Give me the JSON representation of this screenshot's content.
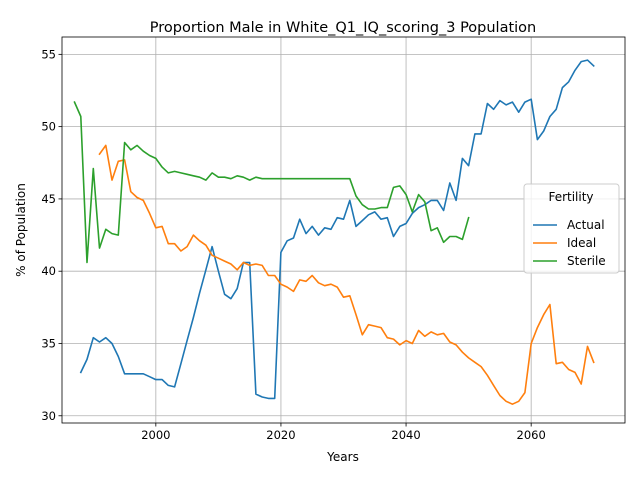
{
  "chart_data": {
    "type": "line",
    "title": "Proportion Male in White_Q1_IQ_scoring_3 Population",
    "xlabel": "Years",
    "ylabel": "% of Population",
    "xlim": [
      1985,
      2075
    ],
    "ylim": [
      29.5,
      56.2
    ],
    "xticks": [
      2000,
      2020,
      2040,
      2060
    ],
    "yticks": [
      30,
      35,
      40,
      45,
      50,
      55
    ],
    "grid": true,
    "legend": {
      "title": "Fertility",
      "placement": "center-right"
    },
    "series": [
      {
        "name": "Actual",
        "color": "#1f77b4",
        "points": [
          [
            1988,
            33.0
          ],
          [
            1989,
            33.9
          ],
          [
            1990,
            35.4
          ],
          [
            1991,
            35.1
          ],
          [
            1992,
            35.4
          ],
          [
            1993,
            35.0
          ],
          [
            1994,
            34.1
          ],
          [
            1995,
            32.9
          ],
          [
            1996,
            32.9
          ],
          [
            1997,
            32.9
          ],
          [
            1998,
            32.9
          ],
          [
            1999,
            32.7
          ],
          [
            2000,
            32.5
          ],
          [
            2001,
            32.5
          ],
          [
            2002,
            32.1
          ],
          [
            2003,
            32.0
          ],
          [
            2004,
            33.6
          ],
          [
            2005,
            35.2
          ],
          [
            2006,
            36.8
          ],
          [
            2007,
            38.5
          ],
          [
            2008,
            40.1
          ],
          [
            2009,
            41.7
          ],
          [
            2010,
            40.0
          ],
          [
            2011,
            38.4
          ],
          [
            2012,
            38.1
          ],
          [
            2013,
            38.8
          ],
          [
            2014,
            40.6
          ],
          [
            2015,
            40.6
          ],
          [
            2016,
            31.5
          ],
          [
            2017,
            31.3
          ],
          [
            2018,
            31.2
          ],
          [
            2019,
            31.2
          ],
          [
            2020,
            41.3
          ],
          [
            2021,
            42.1
          ],
          [
            2022,
            42.3
          ],
          [
            2023,
            43.6
          ],
          [
            2024,
            42.6
          ],
          [
            2025,
            43.1
          ],
          [
            2026,
            42.5
          ],
          [
            2027,
            43.0
          ],
          [
            2028,
            42.9
          ],
          [
            2029,
            43.7
          ],
          [
            2030,
            43.6
          ],
          [
            2031,
            44.9
          ],
          [
            2032,
            43.1
          ],
          [
            2033,
            43.5
          ],
          [
            2034,
            43.9
          ],
          [
            2035,
            44.1
          ],
          [
            2036,
            43.6
          ],
          [
            2037,
            43.7
          ],
          [
            2038,
            42.4
          ],
          [
            2039,
            43.1
          ],
          [
            2040,
            43.3
          ],
          [
            2041,
            44.0
          ],
          [
            2042,
            44.4
          ],
          [
            2043,
            44.6
          ],
          [
            2044,
            44.9
          ],
          [
            2045,
            44.9
          ],
          [
            2046,
            44.2
          ],
          [
            2047,
            46.1
          ],
          [
            2048,
            44.9
          ],
          [
            2049,
            47.8
          ],
          [
            2050,
            47.3
          ],
          [
            2051,
            49.5
          ],
          [
            2052,
            49.5
          ],
          [
            2053,
            51.6
          ],
          [
            2054,
            51.2
          ],
          [
            2055,
            51.8
          ],
          [
            2056,
            51.5
          ],
          [
            2057,
            51.7
          ],
          [
            2058,
            51.0
          ],
          [
            2059,
            51.7
          ],
          [
            2060,
            51.9
          ],
          [
            2061,
            49.1
          ],
          [
            2062,
            49.7
          ],
          [
            2063,
            50.7
          ],
          [
            2064,
            51.2
          ],
          [
            2065,
            52.7
          ],
          [
            2066,
            53.1
          ],
          [
            2067,
            53.9
          ],
          [
            2068,
            54.5
          ],
          [
            2069,
            54.6
          ],
          [
            2070,
            54.2
          ]
        ]
      },
      {
        "name": "Ideal",
        "color": "#ff7f0e",
        "points": [
          [
            1991,
            48.1
          ],
          [
            1992,
            48.7
          ],
          [
            1993,
            46.3
          ],
          [
            1994,
            47.6
          ],
          [
            1995,
            47.7
          ],
          [
            1996,
            45.5
          ],
          [
            1997,
            45.1
          ],
          [
            1998,
            44.9
          ],
          [
            1999,
            44.0
          ],
          [
            2000,
            43.0
          ],
          [
            2001,
            43.1
          ],
          [
            2002,
            41.9
          ],
          [
            2003,
            41.9
          ],
          [
            2004,
            41.4
          ],
          [
            2005,
            41.7
          ],
          [
            2006,
            42.5
          ],
          [
            2007,
            42.1
          ],
          [
            2008,
            41.8
          ],
          [
            2009,
            41.1
          ],
          [
            2010,
            40.9
          ],
          [
            2011,
            40.7
          ],
          [
            2012,
            40.5
          ],
          [
            2013,
            40.1
          ],
          [
            2014,
            40.6
          ],
          [
            2015,
            40.4
          ],
          [
            2016,
            40.5
          ],
          [
            2017,
            40.4
          ],
          [
            2018,
            39.7
          ],
          [
            2019,
            39.7
          ],
          [
            2020,
            39.1
          ],
          [
            2021,
            38.9
          ],
          [
            2022,
            38.6
          ],
          [
            2023,
            39.4
          ],
          [
            2024,
            39.3
          ],
          [
            2025,
            39.7
          ],
          [
            2026,
            39.2
          ],
          [
            2027,
            39.0
          ],
          [
            2028,
            39.1
          ],
          [
            2029,
            38.9
          ],
          [
            2030,
            38.2
          ],
          [
            2031,
            38.3
          ],
          [
            2032,
            37.0
          ],
          [
            2033,
            35.6
          ],
          [
            2034,
            36.3
          ],
          [
            2035,
            36.2
          ],
          [
            2036,
            36.1
          ],
          [
            2037,
            35.4
          ],
          [
            2038,
            35.3
          ],
          [
            2039,
            34.9
          ],
          [
            2040,
            35.2
          ],
          [
            2041,
            35.0
          ],
          [
            2042,
            35.9
          ],
          [
            2043,
            35.5
          ],
          [
            2044,
            35.8
          ],
          [
            2045,
            35.6
          ],
          [
            2046,
            35.7
          ],
          [
            2047,
            35.1
          ],
          [
            2048,
            34.9
          ],
          [
            2049,
            34.4
          ],
          [
            2050,
            34.0
          ],
          [
            2051,
            33.7
          ],
          [
            2052,
            33.4
          ],
          [
            2053,
            32.8
          ],
          [
            2054,
            32.1
          ],
          [
            2055,
            31.4
          ],
          [
            2056,
            31.0
          ],
          [
            2057,
            30.8
          ],
          [
            2058,
            31.0
          ],
          [
            2059,
            31.6
          ],
          [
            2060,
            35.0
          ],
          [
            2061,
            36.1
          ],
          [
            2062,
            37.0
          ],
          [
            2063,
            37.7
          ],
          [
            2064,
            33.6
          ],
          [
            2065,
            33.7
          ],
          [
            2066,
            33.2
          ],
          [
            2067,
            33.0
          ],
          [
            2068,
            32.2
          ],
          [
            2069,
            34.8
          ],
          [
            2070,
            33.7
          ]
        ]
      },
      {
        "name": "Sterile",
        "color": "#2ca02c",
        "points": [
          [
            1987,
            51.7
          ],
          [
            1988,
            50.7
          ],
          [
            1989,
            40.6
          ],
          [
            1990,
            47.1
          ],
          [
            1991,
            41.6
          ],
          [
            1992,
            42.9
          ],
          [
            1993,
            42.6
          ],
          [
            1994,
            42.5
          ],
          [
            1995,
            48.9
          ],
          [
            1996,
            48.4
          ],
          [
            1997,
            48.7
          ],
          [
            1998,
            48.3
          ],
          [
            1999,
            48.0
          ],
          [
            2000,
            47.8
          ],
          [
            2001,
            47.2
          ],
          [
            2002,
            46.8
          ],
          [
            2003,
            46.9
          ],
          [
            2004,
            46.8
          ],
          [
            2005,
            46.7
          ],
          [
            2006,
            46.6
          ],
          [
            2007,
            46.5
          ],
          [
            2008,
            46.3
          ],
          [
            2009,
            46.8
          ],
          [
            2010,
            46.5
          ],
          [
            2011,
            46.5
          ],
          [
            2012,
            46.4
          ],
          [
            2013,
            46.6
          ],
          [
            2014,
            46.5
          ],
          [
            2015,
            46.3
          ],
          [
            2016,
            46.5
          ],
          [
            2017,
            46.4
          ],
          [
            2018,
            46.4
          ],
          [
            2019,
            46.4
          ],
          [
            2020,
            46.4
          ],
          [
            2021,
            46.4
          ],
          [
            2022,
            46.4
          ],
          [
            2023,
            46.4
          ],
          [
            2024,
            46.4
          ],
          [
            2025,
            46.4
          ],
          [
            2026,
            46.4
          ],
          [
            2027,
            46.4
          ],
          [
            2028,
            46.4
          ],
          [
            2029,
            46.4
          ],
          [
            2030,
            46.4
          ],
          [
            2031,
            46.4
          ],
          [
            2032,
            45.2
          ],
          [
            2033,
            44.6
          ],
          [
            2034,
            44.3
          ],
          [
            2035,
            44.3
          ],
          [
            2036,
            44.4
          ],
          [
            2037,
            44.4
          ],
          [
            2038,
            45.8
          ],
          [
            2039,
            45.9
          ],
          [
            2040,
            45.3
          ],
          [
            2041,
            44.1
          ],
          [
            2042,
            45.3
          ],
          [
            2043,
            44.8
          ],
          [
            2044,
            42.8
          ],
          [
            2045,
            43.0
          ],
          [
            2046,
            42.0
          ],
          [
            2047,
            42.4
          ],
          [
            2048,
            42.4
          ],
          [
            2049,
            42.2
          ],
          [
            2050,
            43.7
          ]
        ]
      }
    ]
  }
}
